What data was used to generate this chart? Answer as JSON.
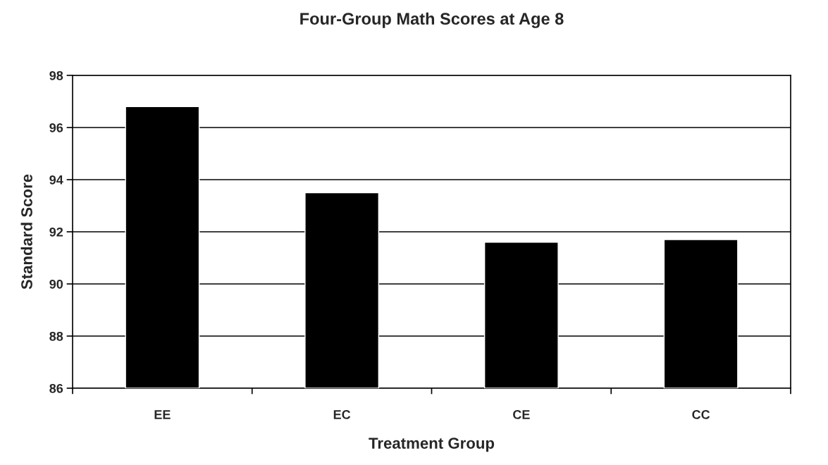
{
  "chart_data": {
    "type": "bar",
    "title": "Four-Group Math Scores at Age 8",
    "xlabel": "Treatment Group",
    "ylabel": "Standard Score",
    "categories": [
      "EE",
      "EC",
      "CE",
      "CC"
    ],
    "values": [
      96.8,
      93.5,
      91.6,
      91.7
    ],
    "color": "#000000",
    "ylim": [
      86,
      98
    ],
    "yticks": [
      86,
      88,
      90,
      92,
      94,
      96,
      98
    ],
    "grid": "y"
  }
}
